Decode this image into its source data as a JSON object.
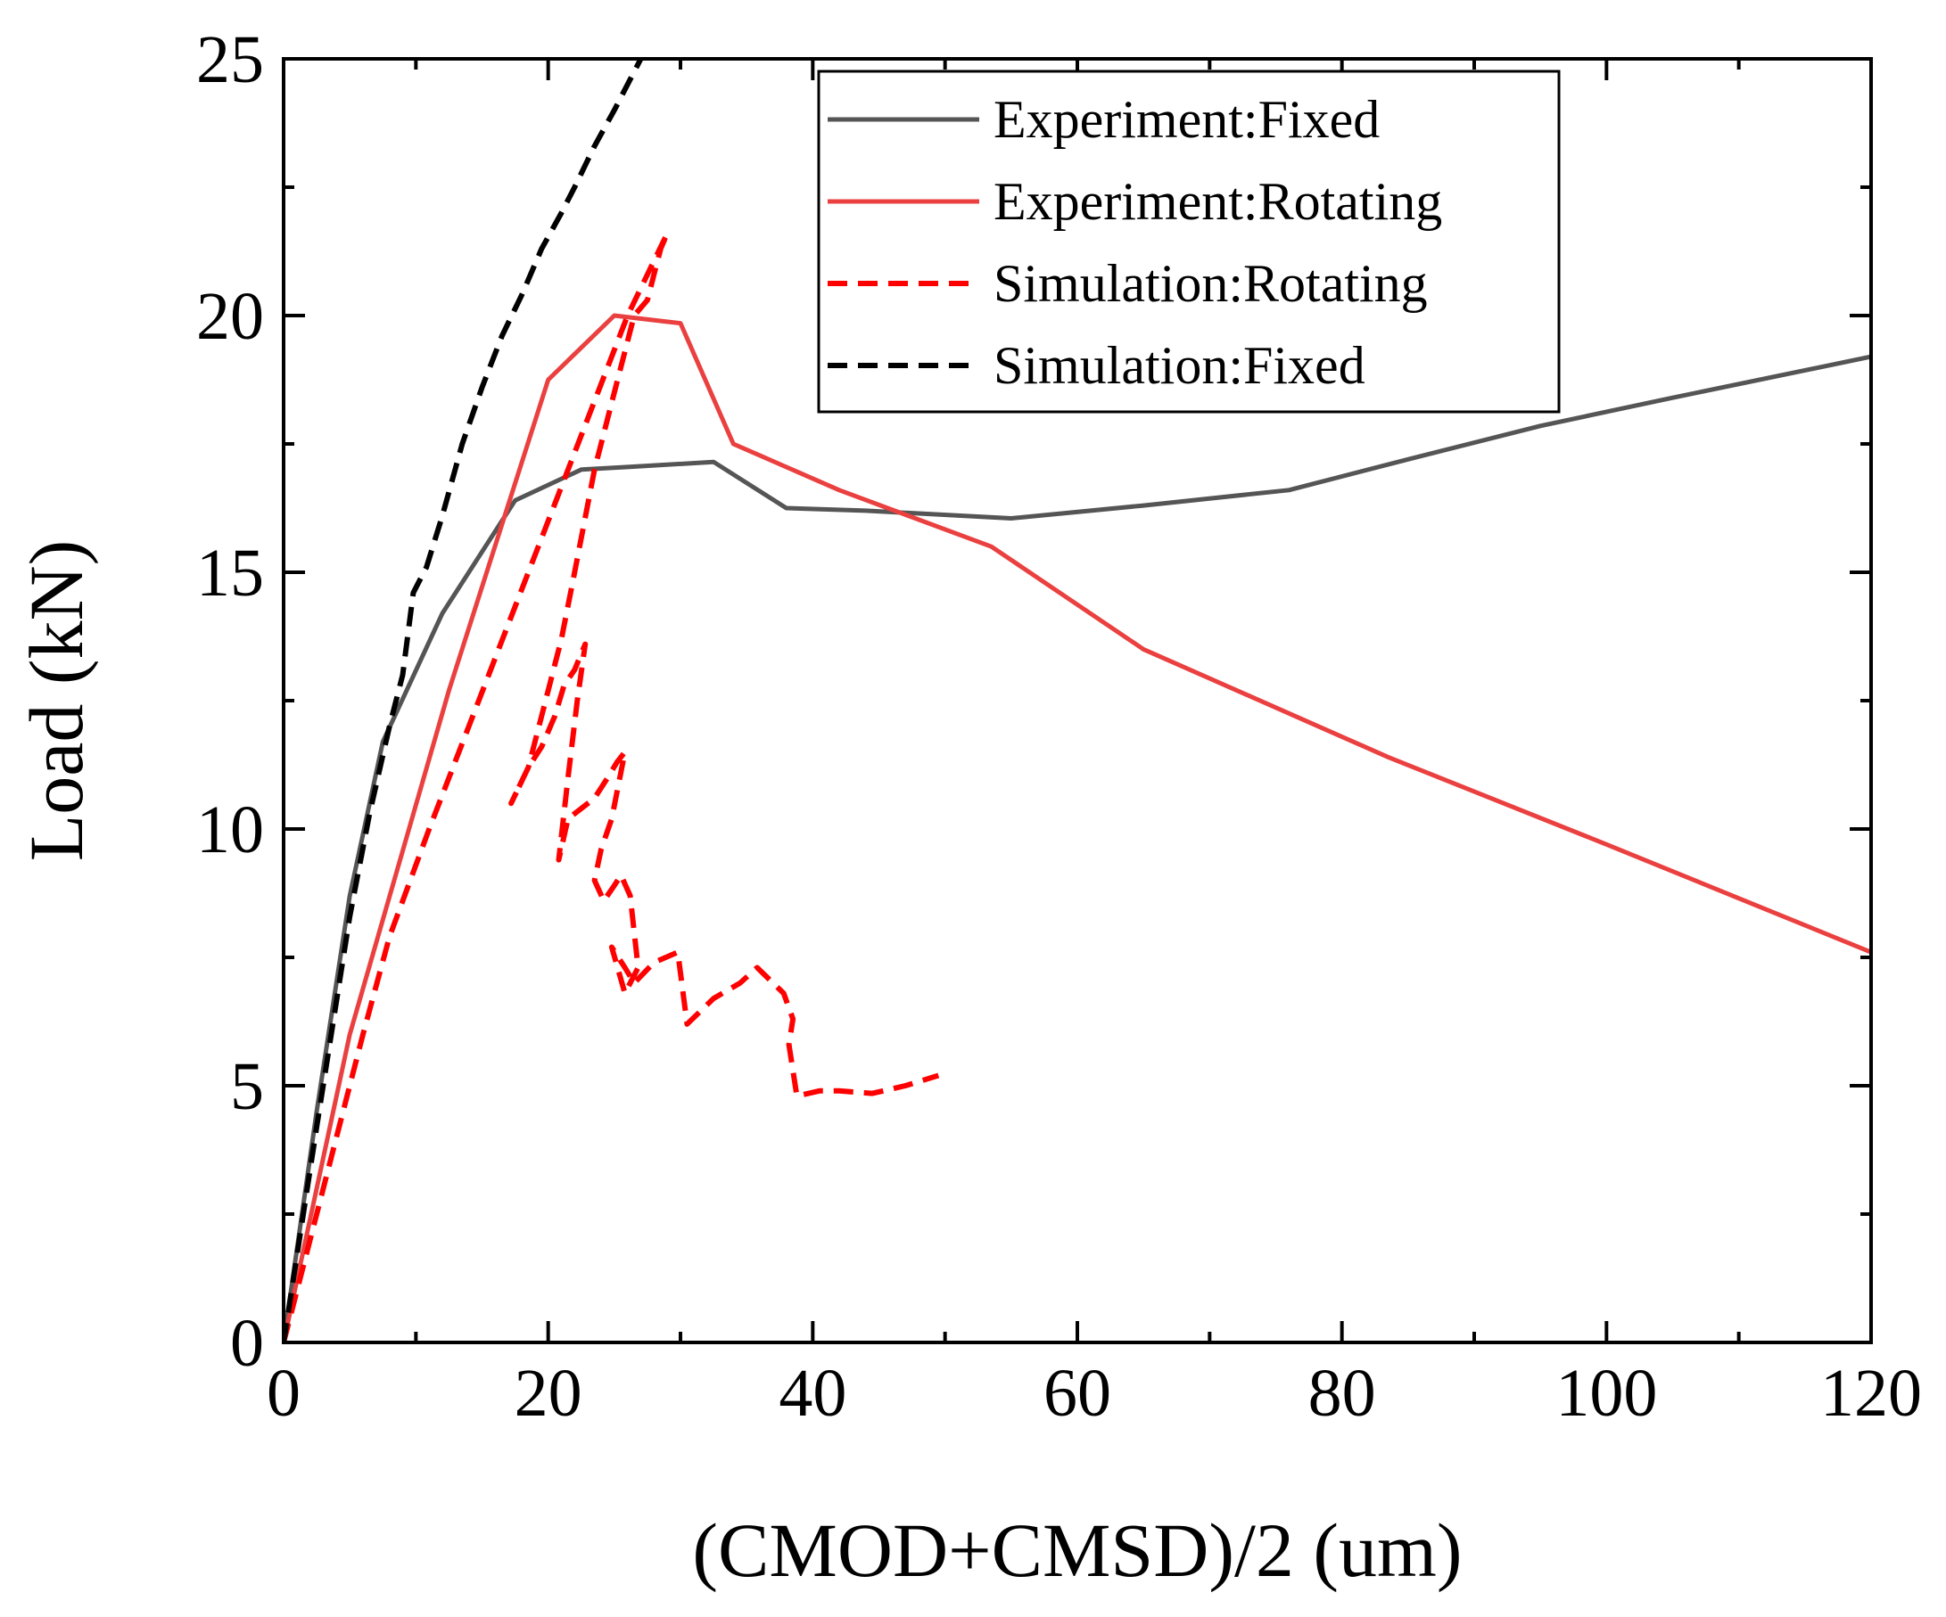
{
  "chart_data": {
    "type": "line",
    "title": "",
    "xlabel": "(CMOD+CMSD)/2 (um)",
    "ylabel": "Load (kN)",
    "xlim": [
      0,
      120
    ],
    "ylim": [
      0,
      25
    ],
    "xticks": [
      0,
      20,
      40,
      60,
      80,
      100,
      120
    ],
    "yticks": [
      0,
      5,
      10,
      15,
      20,
      25
    ],
    "x_minor_step": 10,
    "y_minor_step": 2.5,
    "legend_position": "top-right",
    "series": [
      {
        "name": "Experiment:Fixed",
        "color": "#555555",
        "style": "solid",
        "x": [
          0,
          2.5,
          5,
          7.5,
          12,
          17.5,
          22.5,
          26,
          32.5,
          38,
          44,
          55,
          65,
          76,
          85,
          95,
          105,
          120
        ],
        "y": [
          0,
          4.5,
          8.7,
          11.7,
          14.2,
          16.4,
          17.0,
          17.05,
          17.15,
          16.25,
          16.2,
          16.05,
          16.3,
          16.6,
          17.2,
          17.85,
          18.4,
          19.2
        ]
      },
      {
        "name": "Experiment:Rotating",
        "color": "#ea4040",
        "style": "solid",
        "x": [
          0,
          5,
          12.5,
          20,
          25,
          30,
          34,
          42,
          53.5,
          65,
          83.5,
          100,
          120
        ],
        "y": [
          0,
          6,
          12.7,
          18.75,
          20.0,
          19.85,
          17.5,
          16.6,
          15.5,
          13.5,
          11.4,
          9.7,
          7.6
        ]
      },
      {
        "name": "Simulation:Rotating",
        "color": "#ff0000",
        "style": "dashed",
        "x": [
          0,
          2,
          4,
          6,
          8,
          11,
          14,
          17,
          20,
          23,
          26,
          29,
          28.5,
          28,
          27.5,
          26.5,
          25,
          23.5,
          22,
          21,
          19.5,
          18.5,
          17.2,
          18.5,
          19.5,
          20.5,
          21.2,
          22,
          22.8,
          22.2,
          21.5,
          20.8,
          21.5,
          22.5,
          23.5,
          24.5,
          25.2,
          25.8,
          24.8,
          24,
          23.5,
          24.2,
          25,
          25.5,
          26.2,
          26.8,
          25.8,
          24.8,
          25.8,
          26.5,
          28,
          29.8,
          30.5,
          32.5,
          34.5,
          35.8,
          37,
          37.8,
          38.5,
          38.2,
          38.8,
          40.5,
          42,
          44.5,
          47,
          49.5
        ],
        "y": [
          0,
          2.0,
          4.0,
          6.0,
          7.9,
          10.0,
          12.0,
          14.0,
          16.0,
          18.0,
          20.0,
          21.6,
          21.3,
          20.8,
          20.3,
          20.0,
          18.5,
          17.0,
          15.0,
          13.7,
          12.2,
          11.2,
          10.5,
          11.2,
          11.6,
          12.2,
          12.8,
          13.1,
          13.6,
          12.5,
          11.0,
          9.4,
          10.2,
          10.4,
          10.6,
          11.0,
          11.3,
          11.5,
          10.2,
          9.6,
          9.0,
          8.6,
          8.9,
          9.1,
          8.7,
          7.3,
          6.8,
          7.7,
          7.3,
          7.0,
          7.4,
          7.6,
          6.2,
          6.7,
          7.0,
          7.3,
          7.0,
          6.8,
          6.3,
          5.8,
          4.8,
          4.9,
          4.9,
          4.85,
          5.0,
          5.2
        ]
      },
      {
        "name": "Simulation:Fixed",
        "color": "#000000",
        "style": "dashed",
        "x": [
          0,
          2.5,
          5,
          6.5,
          8,
          9,
          9.8,
          10.8,
          12,
          13.5,
          15,
          16.5,
          18,
          19.5,
          21,
          22,
          23.5,
          25,
          27
        ],
        "y": [
          0,
          4.2,
          8.3,
          10.3,
          12.0,
          13.0,
          14.6,
          15.1,
          16.1,
          17.5,
          18.6,
          19.6,
          20.4,
          21.3,
          22.0,
          22.5,
          23.3,
          24.0,
          25.0
        ]
      }
    ]
  }
}
